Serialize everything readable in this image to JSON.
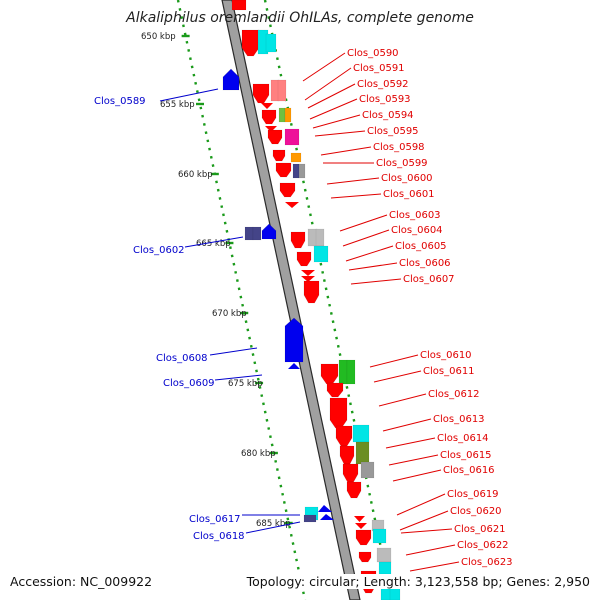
{
  "title": "Alkaliphilus oremlandii OhILAs, complete genome",
  "footer": {
    "accession": "Accession: NC_009922",
    "stats": "Topology: circular; Length: 3,123,558 bp; Genes: 2,950"
  },
  "colors": {
    "backbone": "#a0a0a0",
    "backbone_edge": "#2a2a2a",
    "scale_dots": "#1a9a1a",
    "left_label": "#0000cc",
    "right_label": "#e00000",
    "forward_genes": "#ff0000",
    "reverse_genes": "#0000ee"
  },
  "scale": {
    "unit": "kbp",
    "ticks": [
      "650 kbp",
      "655 kbp",
      "660 kbp",
      "665 kbp",
      "670 kbp",
      "675 kbp",
      "680 kbp",
      "685 kbp"
    ]
  },
  "left_labels": [
    "Clos_0589",
    "Clos_0602",
    "Clos_0608",
    "Clos_0609",
    "Clos_0617",
    "Clos_0618"
  ],
  "right_labels": [
    "Clos_0590",
    "Clos_0591",
    "Clos_0592",
    "Clos_0593",
    "Clos_0594",
    "Clos_0595",
    "Clos_0598",
    "Clos_0599",
    "Clos_0600",
    "Clos_0601",
    "Clos_0603",
    "Clos_0604",
    "Clos_0605",
    "Clos_0606",
    "Clos_0607",
    "Clos_0610",
    "Clos_0611",
    "Clos_0612",
    "Clos_0613",
    "Clos_0614",
    "Clos_0615",
    "Clos_0616",
    "Clos_0619",
    "Clos_0620",
    "Clos_0621",
    "Clos_0622",
    "Clos_0623"
  ],
  "cog_colors": [
    "#ff8080",
    "#00e5e5",
    "#70c040",
    "#ff9900",
    "#ee1199",
    "#999999",
    "#444488",
    "#6b8e23",
    "#22bb22",
    "#bbbbbb"
  ]
}
